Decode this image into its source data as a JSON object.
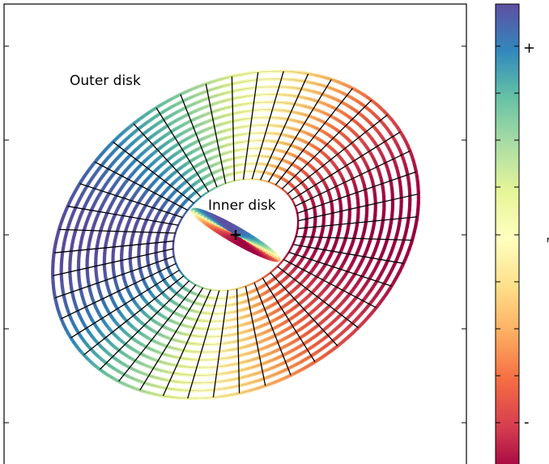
{
  "labels": {
    "outer_disk": "Outer disk",
    "inner_disk": "Inner disk"
  },
  "colorbar": {
    "top_sign": "+",
    "bottom_sign": "-",
    "axis_label": "z",
    "colormap": [
      "#9e0142",
      "#d53e4f",
      "#f46d43",
      "#fdae61",
      "#fee08b",
      "#ffffbf",
      "#e6f598",
      "#abdda4",
      "#66c2a5",
      "#3288bd",
      "#5e4fa2"
    ]
  },
  "colors": {
    "frame": "#000000",
    "grid": "#000000",
    "center_marker": "#000000"
  }
}
